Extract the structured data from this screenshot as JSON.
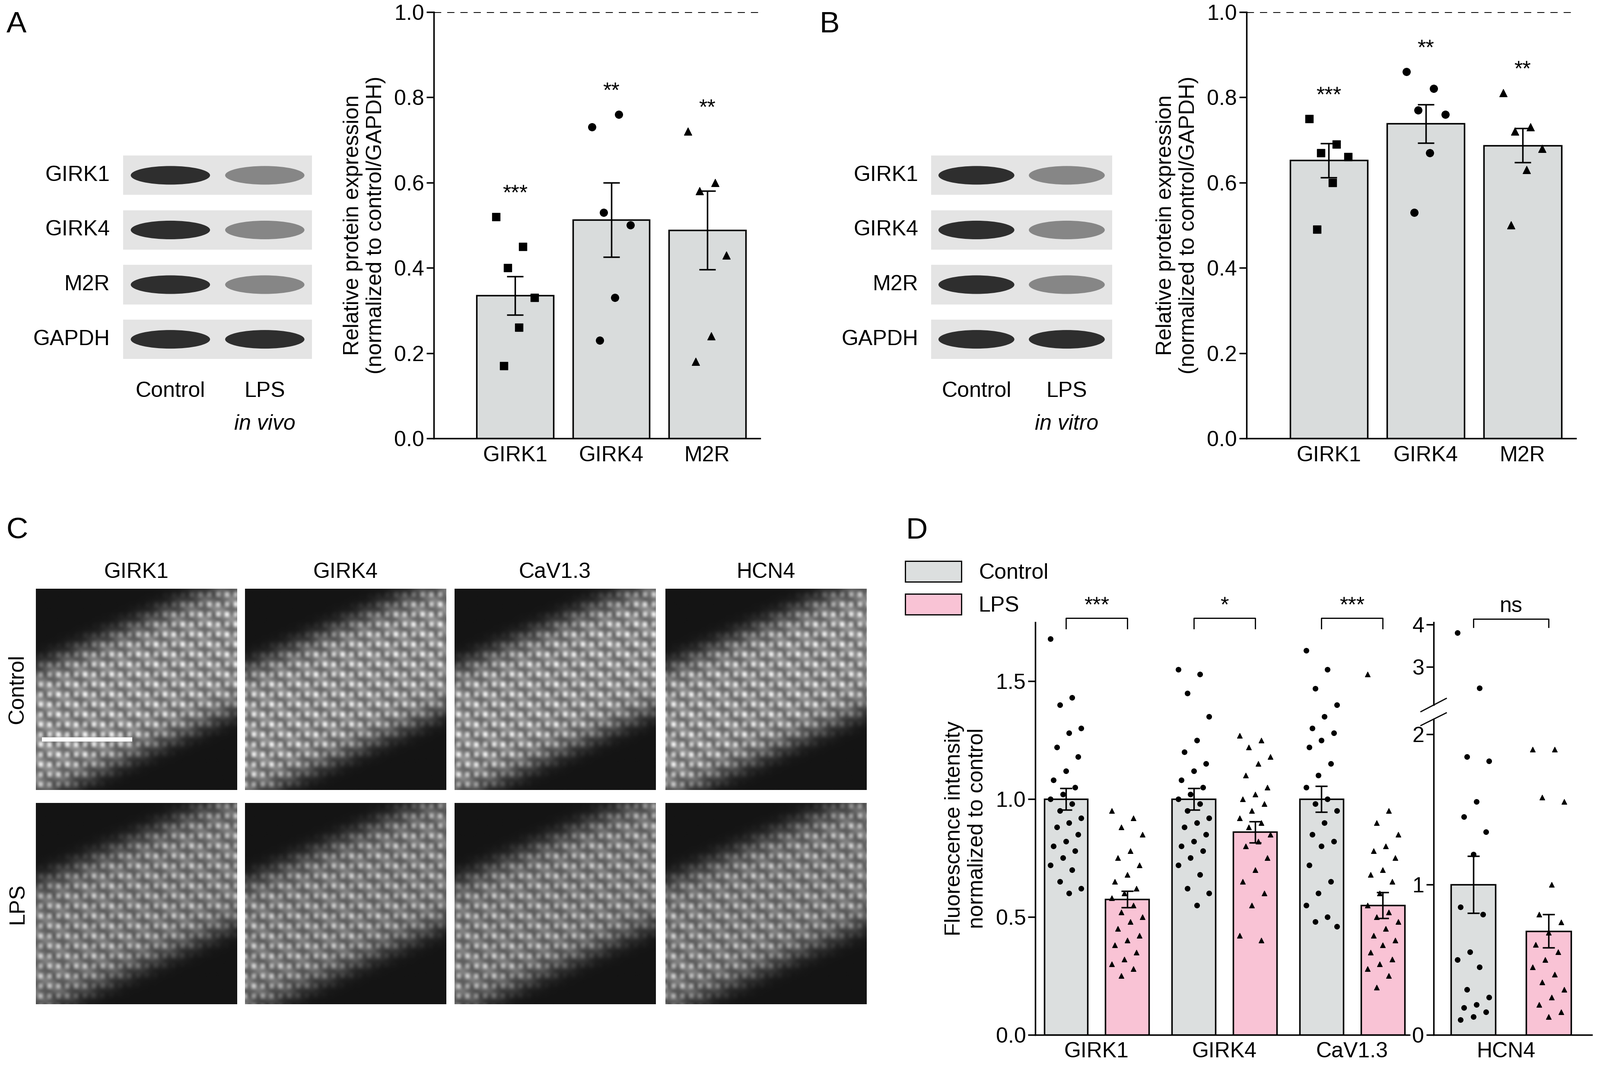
{
  "panel_labels": [
    "A",
    "B",
    "C",
    "D"
  ],
  "blots": [
    {
      "proteins": [
        "GIRK1",
        "GIRK4",
        "M2R",
        "GAPDH"
      ],
      "lanes": [
        "Control",
        "LPS"
      ],
      "condition": "in vivo"
    },
    {
      "proteins": [
        "GIRK1",
        "GIRK4",
        "M2R",
        "GAPDH"
      ],
      "lanes": [
        "Control",
        "LPS"
      ],
      "condition": "in vitro"
    }
  ],
  "images": {
    "columns": [
      "GIRK1",
      "GIRK4",
      "CaV1.3",
      "HCN4"
    ],
    "rows": [
      "Control",
      "LPS"
    ]
  },
  "chart_data": [
    {
      "type": "bar",
      "ylabel": "Relative protein expression\n(normalized to control/GAPDH)",
      "categories": [
        "GIRK1",
        "GIRK4",
        "M2R"
      ],
      "values": [
        0.335,
        0.513,
        0.488
      ],
      "errors": [
        0.045,
        0.087,
        0.092
      ],
      "points": [
        [
          0.52,
          0.45,
          0.4,
          0.33,
          0.26,
          0.17
        ],
        [
          0.73,
          0.76,
          0.53,
          0.5,
          0.33,
          0.23
        ],
        [
          0.72,
          0.6,
          0.58,
          0.43,
          0.24,
          0.18
        ]
      ],
      "significance": [
        "***",
        "**",
        "**"
      ],
      "reference_line": 1.0,
      "color": "#d9dcdc",
      "ylim": [
        0,
        1.0
      ],
      "yticks": [
        {
          "value": 0,
          "label": "0.0"
        },
        0.2,
        0.4,
        0.6,
        0.8,
        {
          "value": 1.0,
          "label": "1.0"
        }
      ]
    },
    {
      "type": "bar",
      "ylabel": "Relative protein expression\n(normalized to control/GAPDH)",
      "categories": [
        "GIRK1",
        "GIRK4",
        "M2R"
      ],
      "values": [
        0.652,
        0.738,
        0.687
      ],
      "errors": [
        0.04,
        0.045,
        0.04
      ],
      "points": [
        [
          0.75,
          0.69,
          0.67,
          0.66,
          0.6,
          0.49
        ],
        [
          0.86,
          0.82,
          0.77,
          0.76,
          0.67,
          0.53
        ],
        [
          0.81,
          0.73,
          0.72,
          0.68,
          0.63,
          0.5
        ]
      ],
      "significance": [
        "***",
        "**",
        "**"
      ],
      "reference_line": 1.0,
      "color": "#d9dcdc",
      "ylim": [
        0,
        1.0
      ],
      "yticks": [
        {
          "value": 0,
          "label": "0.0"
        },
        0.2,
        0.4,
        0.6,
        0.8,
        {
          "value": 1.0,
          "label": "1.0"
        }
      ]
    },
    {
      "type": "bar",
      "ylabel": "Fluorescence intensity\nnormalized to control",
      "categories": [
        "GIRK1",
        "GIRK4",
        "CaV1.3"
      ],
      "legend": "upper left",
      "series": [
        {
          "name": "Control",
          "color": "#dcdfdf",
          "marker": "circle",
          "values": [
            1.0,
            1.0,
            1.0
          ],
          "errors": [
            0.045,
            0.045,
            0.055
          ],
          "points": [
            [
              1.68,
              1.43,
              1.4,
              1.3,
              1.28,
              1.22,
              1.18,
              1.12,
              1.08,
              1.05,
              1.02,
              1.0,
              0.98,
              0.95,
              0.92,
              0.9,
              0.88,
              0.85,
              0.82,
              0.8,
              0.78,
              0.75,
              0.72,
              0.7,
              0.65,
              0.62,
              0.6
            ],
            [
              1.55,
              1.53,
              1.45,
              1.35,
              1.25,
              1.2,
              1.15,
              1.12,
              1.08,
              1.05,
              1.02,
              1.0,
              0.98,
              0.95,
              0.92,
              0.9,
              0.88,
              0.85,
              0.82,
              0.8,
              0.78,
              0.75,
              0.72,
              0.68,
              0.62,
              0.6,
              0.55
            ],
            [
              1.63,
              1.55,
              1.47,
              1.4,
              1.35,
              1.3,
              1.28,
              1.25,
              1.22,
              1.15,
              1.1,
              1.05,
              1.0,
              0.98,
              0.95,
              0.9,
              0.85,
              0.82,
              0.8,
              0.72,
              0.65,
              0.6,
              0.55,
              0.5,
              0.48,
              0.46
            ]
          ]
        },
        {
          "name": "LPS",
          "color": "#f9c3d5",
          "marker": "triangle",
          "values": [
            0.575,
            0.86,
            0.55
          ],
          "errors": [
            0.035,
            0.045,
            0.055
          ],
          "points": [
            [
              0.95,
              0.92,
              0.88,
              0.85,
              0.78,
              0.75,
              0.72,
              0.68,
              0.65,
              0.62,
              0.6,
              0.58,
              0.55,
              0.52,
              0.5,
              0.48,
              0.45,
              0.42,
              0.4,
              0.38,
              0.35,
              0.32,
              0.3,
              0.28,
              0.25
            ],
            [
              1.27,
              1.25,
              1.22,
              1.18,
              1.15,
              1.1,
              1.05,
              1.02,
              1.0,
              0.98,
              0.95,
              0.92,
              0.9,
              0.88,
              0.85,
              0.82,
              0.8,
              0.75,
              0.7,
              0.65,
              0.6,
              0.55,
              0.42,
              0.4
            ],
            [
              1.53,
              0.95,
              0.9,
              0.85,
              0.8,
              0.78,
              0.75,
              0.7,
              0.68,
              0.65,
              0.6,
              0.55,
              0.52,
              0.5,
              0.48,
              0.45,
              0.42,
              0.4,
              0.38,
              0.35,
              0.32,
              0.3,
              0.28,
              0.25,
              0.2
            ]
          ]
        }
      ],
      "significance": [
        "***",
        "*",
        "***"
      ],
      "ylim": [
        0,
        1.75
      ],
      "yticks": [
        {
          "value": 0,
          "label": "0.0"
        },
        0.5,
        {
          "value": 1.0,
          "label": "1.0"
        },
        1.5
      ]
    },
    {
      "type": "bar",
      "categories": [
        "HCN4"
      ],
      "series": [
        {
          "name": "Control",
          "color": "#dcdfdf",
          "marker": "circle",
          "values": [
            1.0
          ],
          "errors": [
            0.19
          ],
          "points": [
            [
              3.8,
              2.5,
              1.85,
              1.82,
              1.55,
              1.45,
              1.35,
              1.2,
              0.85,
              0.8,
              0.55,
              0.5,
              0.45,
              0.3,
              0.25,
              0.2,
              0.18,
              0.15,
              0.12,
              0.1
            ]
          ]
        },
        {
          "name": "LPS",
          "color": "#f9c3d5",
          "marker": "triangle",
          "values": [
            0.69
          ],
          "errors": [
            0.11
          ],
          "points": [
            [
              1.9,
              1.9,
              1.58,
              1.55,
              1.0,
              0.8,
              0.75,
              0.68,
              0.6,
              0.55,
              0.5,
              0.45,
              0.4,
              0.35,
              0.3,
              0.25,
              0.2,
              0.15,
              0.12
            ]
          ]
        }
      ],
      "significance": [
        "ns"
      ],
      "ylim": [
        0,
        2.1
      ],
      "yticks": [
        0,
        1,
        2
      ],
      "break_ylim": [
        2.1,
        4.05
      ],
      "break_yticks": [
        3,
        4
      ]
    }
  ]
}
